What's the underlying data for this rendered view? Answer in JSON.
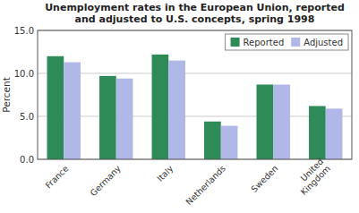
{
  "chart_data": {
    "type": "bar",
    "title": "Unemployment rates in the European Union,  reported\nand adjusted to U.S. concepts, spring 1998",
    "y_label": "Percent",
    "categories": [
      "France",
      "Germany",
      "Italy",
      "Netherlands",
      "Sweden",
      "United\nKingdom"
    ],
    "series": [
      {
        "name": "Reported",
        "color": "#2e8b57",
        "values": [
          12.0,
          9.7,
          12.2,
          4.4,
          8.7,
          6.2
        ]
      },
      {
        "name": "Adjusted",
        "color": "#b0b8e8",
        "values": [
          11.3,
          9.4,
          11.5,
          3.9,
          8.7,
          5.9
        ]
      }
    ],
    "ylim": [
      0,
      15.0
    ],
    "yticks": [
      {
        "value": 0.0,
        "label": "0.0"
      },
      {
        "value": 5.0,
        "label": "5.0"
      },
      {
        "value": 10.0,
        "label": "10.0"
      },
      {
        "value": 15.0,
        "label": "15.0"
      }
    ],
    "grid": true,
    "legend": "upper right"
  }
}
